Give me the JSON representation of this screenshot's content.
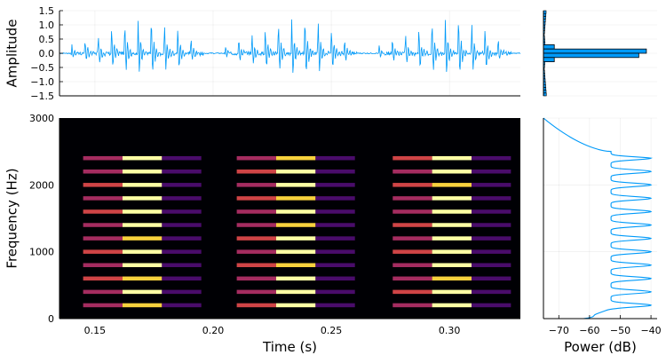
{
  "colors": {
    "series": "#009af9",
    "spectrogram_bg": "#000004",
    "colormap": [
      "#000004",
      "#1b0c41",
      "#4a0c6b",
      "#781c6d",
      "#a52c60",
      "#cf4446",
      "#ed6925",
      "#fb9b06",
      "#f7d13d",
      "#fcffa4"
    ]
  },
  "chart_data": [
    {
      "id": "waveform",
      "type": "line",
      "xlabel": "",
      "ylabel": "Amplitude",
      "xlim": [
        0.135,
        0.33
      ],
      "ylim": [
        -1.5,
        1.5
      ],
      "yticks": [
        -1.5,
        -1.0,
        -0.5,
        0.0,
        0.5,
        1.0,
        1.5
      ],
      "ytick_labels": [
        "−1.5",
        "−1.0",
        "−0.5",
        "0.0",
        "0.5",
        "1.0",
        "1.5"
      ],
      "grid": true,
      "bursts": [
        {
          "start": 0.14,
          "end": 0.196
        },
        {
          "start": 0.205,
          "end": 0.261
        },
        {
          "start": 0.27,
          "end": 0.326
        }
      ],
      "pulses_per_burst": 10,
      "pulse_peaks": [
        0.3,
        0.55,
        0.8,
        1.05,
        1.3,
        1.5,
        1.45,
        1.3,
        1.0,
        0.6
      ],
      "pulse_troughs": [
        -0.25,
        -0.5,
        -0.75,
        -1.0,
        -1.2,
        -1.45,
        -1.5,
        -1.3,
        -1.0,
        -0.55
      ]
    },
    {
      "id": "amplitude-histogram",
      "type": "bar",
      "orientation": "horizontal",
      "ylim": [
        -1.5,
        1.5
      ],
      "bins": [
        {
          "low": 0.15,
          "high": 0.3,
          "count": 0.1
        },
        {
          "low": 0.0,
          "high": 0.15,
          "count": 0.95
        },
        {
          "low": -0.15,
          "high": 0.0,
          "count": 0.88
        },
        {
          "low": -0.3,
          "high": -0.15,
          "count": 0.1
        }
      ]
    },
    {
      "id": "spectrogram",
      "type": "heatmap",
      "xlabel": "Time (s)",
      "ylabel": "Frequency (Hz)",
      "xlim": [
        0.135,
        0.33
      ],
      "ylim": [
        0,
        3000
      ],
      "xticks": [
        0.15,
        0.2,
        0.25,
        0.3
      ],
      "xtick_labels": [
        "0.15",
        "0.20",
        "0.25",
        "0.30"
      ],
      "yticks": [
        0,
        1000,
        2000,
        3000
      ],
      "ytick_labels": [
        "0",
        "1000",
        "2000",
        "3000"
      ],
      "bursts": [
        {
          "start": 0.145,
          "end": 0.195
        },
        {
          "start": 0.21,
          "end": 0.26
        },
        {
          "start": 0.276,
          "end": 0.326
        }
      ],
      "segment_weights": [
        0.45,
        0.85,
        0.18
      ],
      "harmonics_hz": [
        200,
        400,
        600,
        800,
        1000,
        1200,
        1400,
        1600,
        1800,
        2000,
        2200,
        2400
      ],
      "band_halfwidth_hz": 30
    },
    {
      "id": "power-spectrum",
      "type": "line",
      "xlabel": "Power (dB)",
      "xlim": [
        -75,
        -38
      ],
      "xticks": [
        -70,
        -60,
        -50,
        -40
      ],
      "xtick_labels": [
        "−70",
        "−60",
        "−50",
        "−40"
      ],
      "ylim": [
        0,
        3000
      ],
      "grid": true,
      "peaks_hz": [
        200,
        400,
        600,
        800,
        1000,
        1200,
        1400,
        1600,
        1800,
        2000,
        2200,
        2400
      ],
      "peak_db": -40,
      "trough_db": -53,
      "low_end_db": -62,
      "top_end_db": -75
    }
  ]
}
